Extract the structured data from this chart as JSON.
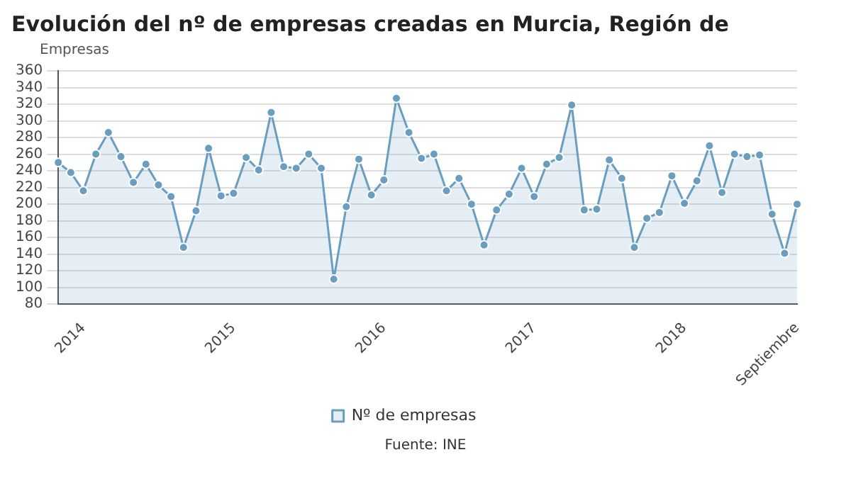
{
  "chart_data": {
    "type": "area",
    "title": "Evolución del nº de empresas creadas en Murcia, Región de",
    "ylabel": "Empresas",
    "categories": [
      null,
      null,
      "2014",
      null,
      null,
      null,
      null,
      null,
      null,
      null,
      null,
      null,
      null,
      null,
      "2015",
      null,
      null,
      null,
      null,
      null,
      null,
      null,
      null,
      null,
      null,
      null,
      "2016",
      null,
      null,
      null,
      null,
      null,
      null,
      null,
      null,
      null,
      null,
      null,
      "2017",
      null,
      null,
      null,
      null,
      null,
      null,
      null,
      null,
      null,
      null,
      null,
      "2018",
      null,
      null,
      null,
      null,
      null,
      null,
      null,
      null,
      "Septiembre"
    ],
    "series": [
      {
        "name": "Nº de empresas",
        "color": "#6a9ec0",
        "values": [
          250,
          238,
          216,
          260,
          286,
          257,
          226,
          248,
          223,
          209,
          148,
          192,
          267,
          210,
          213,
          256,
          241,
          310,
          245,
          243,
          260,
          243,
          110,
          197,
          254,
          211,
          229,
          327,
          286,
          255,
          260,
          216,
          231,
          200,
          151,
          193,
          212,
          243,
          209,
          248,
          256,
          319,
          193,
          194,
          253,
          231,
          148,
          183,
          190,
          234,
          201,
          228,
          270,
          214,
          260,
          257,
          259,
          188,
          141,
          200
        ]
      }
    ],
    "ylim": [
      80,
      360
    ],
    "yticks": [
      80,
      100,
      120,
      140,
      160,
      180,
      200,
      220,
      240,
      260,
      280,
      300,
      320,
      340,
      360
    ],
    "grid": "y",
    "marker": "circle",
    "legend": "bottom",
    "annotations": [
      "Fuente: INE"
    ]
  }
}
